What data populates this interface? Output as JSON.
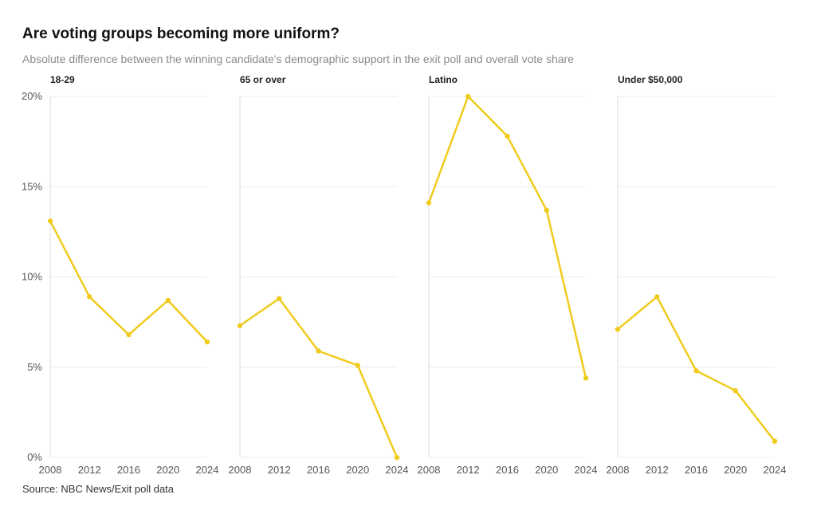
{
  "header": {
    "title": "Are voting groups becoming more uniform?",
    "subtitle": "Absolute difference between the winning candidate's demographic support in the exit poll and overall vote share"
  },
  "footer": {
    "source": "Source: NBC News/Exit poll data"
  },
  "colors": {
    "line": "#f0cb1d",
    "grid": "#ebebeb",
    "axis": "#dddddd"
  },
  "chart_data": {
    "type": "line",
    "layout": "small-multiples",
    "title": "Are voting groups becoming more uniform?",
    "subtitle": "Absolute difference between the winning candidate's demographic support in the exit poll and overall vote share",
    "x": [
      "2008",
      "2012",
      "2016",
      "2020",
      "2024"
    ],
    "y_ticks": [
      "0%",
      "5%",
      "10%",
      "15%",
      "20%"
    ],
    "ylim": [
      0,
      20
    ],
    "unit": "%",
    "grid": true,
    "series": [
      {
        "name": "18-29",
        "values": [
          13.1,
          8.9,
          6.8,
          8.7,
          6.4
        ]
      },
      {
        "name": "65 or over",
        "values": [
          7.3,
          8.8,
          5.9,
          5.1,
          0.0
        ]
      },
      {
        "name": "Latino",
        "values": [
          14.1,
          20.0,
          17.8,
          13.7,
          4.4
        ]
      },
      {
        "name": "Under $50,000",
        "values": [
          7.1,
          8.9,
          4.8,
          3.7,
          0.9
        ]
      }
    ]
  }
}
